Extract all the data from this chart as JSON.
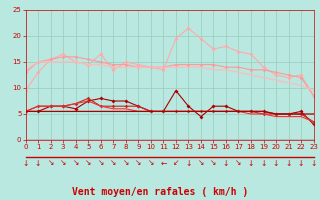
{
  "background_color": "#b8e8e0",
  "grid_color": "#99ccbb",
  "xlabel": "Vent moyen/en rafales ( km/h )",
  "xlabel_color": "#cc0000",
  "xlabel_fontsize": 7,
  "tick_color": "#cc0000",
  "xlim": [
    0,
    23
  ],
  "ylim": [
    0,
    25
  ],
  "yticks": [
    0,
    5,
    10,
    15,
    20,
    25
  ],
  "xticks": [
    0,
    1,
    2,
    3,
    4,
    5,
    6,
    7,
    8,
    9,
    10,
    11,
    12,
    13,
    14,
    15,
    16,
    17,
    18,
    19,
    20,
    21,
    22,
    23
  ],
  "x": [
    0,
    1,
    2,
    3,
    4,
    5,
    6,
    7,
    8,
    9,
    10,
    11,
    12,
    13,
    14,
    15,
    16,
    17,
    18,
    19,
    20,
    21,
    22,
    23
  ],
  "line1": [
    9.5,
    13.0,
    15.5,
    16.5,
    15.0,
    14.5,
    16.5,
    13.5,
    15.0,
    14.5,
    14.0,
    13.5,
    19.5,
    21.5,
    19.5,
    17.5,
    18.0,
    17.0,
    16.5,
    14.0,
    12.5,
    12.0,
    12.5,
    8.5
  ],
  "line2": [
    13.0,
    15.0,
    15.5,
    16.0,
    16.0,
    15.5,
    15.0,
    14.5,
    14.5,
    14.0,
    14.0,
    14.0,
    14.5,
    14.5,
    14.5,
    14.5,
    14.0,
    14.0,
    13.5,
    13.5,
    13.0,
    12.5,
    12.0,
    8.5
  ],
  "line3": [
    13.5,
    15.0,
    15.0,
    15.0,
    15.0,
    14.5,
    14.5,
    14.0,
    14.0,
    14.0,
    14.0,
    14.0,
    14.0,
    14.0,
    14.0,
    13.5,
    13.5,
    13.0,
    12.5,
    12.0,
    11.5,
    11.0,
    10.5,
    9.5
  ],
  "line4": [
    5.5,
    5.5,
    6.5,
    6.5,
    6.0,
    7.5,
    8.0,
    7.5,
    7.5,
    6.5,
    5.5,
    5.5,
    9.5,
    6.5,
    4.5,
    6.5,
    6.5,
    5.5,
    5.5,
    5.5,
    5.0,
    5.0,
    5.5,
    3.0
  ],
  "line5": [
    5.5,
    6.5,
    6.5,
    6.5,
    7.0,
    8.0,
    6.5,
    6.5,
    6.5,
    6.5,
    5.5,
    5.5,
    5.5,
    5.5,
    5.5,
    5.5,
    5.5,
    5.5,
    5.5,
    5.0,
    5.0,
    5.0,
    5.0,
    3.5
  ],
  "line6": [
    5.5,
    6.5,
    6.5,
    6.5,
    7.0,
    7.5,
    6.5,
    6.0,
    6.0,
    5.5,
    5.5,
    5.5,
    5.5,
    5.5,
    5.5,
    5.5,
    5.5,
    5.5,
    5.0,
    5.0,
    4.5,
    4.5,
    4.5,
    3.5
  ],
  "line7": [
    5.5,
    5.5,
    5.5,
    5.5,
    5.5,
    5.5,
    5.5,
    5.5,
    5.5,
    5.5,
    5.5,
    5.5,
    5.5,
    5.5,
    5.5,
    5.5,
    5.5,
    5.5,
    5.5,
    5.5,
    5.0,
    5.0,
    5.0,
    5.0
  ],
  "color_light_pink": "#ffaaaa",
  "color_salmon": "#ff9999",
  "color_pink_medium": "#ffbbbb",
  "color_dark_red": "#aa0000",
  "color_medium_red": "#cc2222",
  "color_red": "#ee3333",
  "arrows": [
    "↓",
    "↓",
    "↘",
    "↘",
    "↘",
    "↘",
    "↘",
    "↘",
    "↘",
    "↘",
    "↘",
    "←",
    "↙",
    "↓",
    "↘",
    "↘",
    "↓",
    "↘",
    "↓",
    "↓",
    "↓",
    "↓",
    "↓",
    "↓"
  ]
}
